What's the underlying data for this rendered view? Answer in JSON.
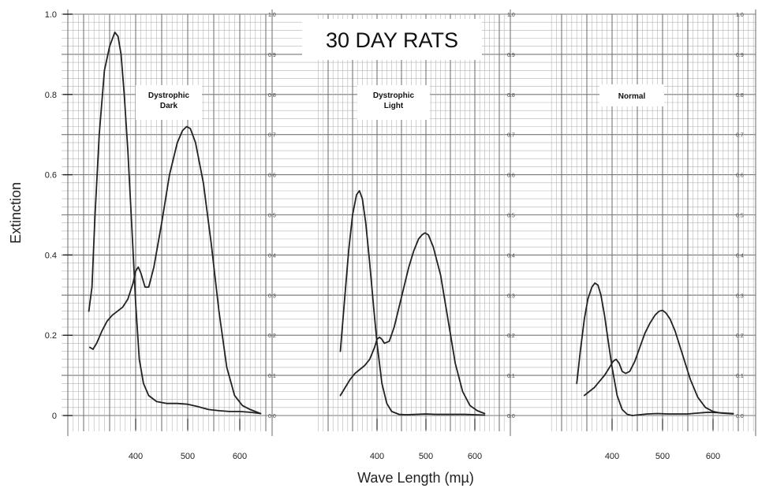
{
  "chart_data": {
    "type": "line",
    "title": "30 DAY RATS",
    "ylabel": "Extinction",
    "xlabel": "Wave Length (mµ)",
    "ylim": [
      0,
      1.0
    ],
    "xlim": [
      310,
      655
    ],
    "y_ticks": [
      "0",
      "0.2",
      "0.4",
      "0.6",
      "0.8",
      "1.0"
    ],
    "y_ticks_small": [
      "0.0",
      "0.1",
      "0.2",
      "0.3",
      "0.4",
      "0.5",
      "0.6",
      "0.7",
      "0.8",
      "0.9",
      "1.0"
    ],
    "x_ticks": [
      "400",
      "500",
      "600"
    ],
    "panels": [
      {
        "label": [
          "Dystrophic",
          "Dark"
        ],
        "series": [
          {
            "x": [
              310,
              316,
              322,
              330,
              340,
              350,
              360,
              366,
              372,
              378,
              385,
              393,
              400,
              407,
              415,
              425,
              440,
              460,
              480,
              500,
              520,
              540,
              560,
              580,
              600,
              620,
              640
            ],
            "y": [
              0.26,
              0.32,
              0.5,
              0.7,
              0.86,
              0.92,
              0.955,
              0.945,
              0.9,
              0.8,
              0.66,
              0.46,
              0.28,
              0.14,
              0.08,
              0.05,
              0.035,
              0.03,
              0.03,
              0.028,
              0.022,
              0.015,
              0.012,
              0.01,
              0.01,
              0.008,
              0.005
            ]
          },
          {
            "x": [
              312,
              318,
              325,
              335,
              345,
              355,
              365,
              375,
              385,
              395,
              400,
              405,
              410,
              418,
              425,
              435,
              450,
              465,
              480,
              490,
              498,
              505,
              515,
              530,
              545,
              560,
              575,
              590,
              605,
              620,
              640
            ],
            "y": [
              0.17,
              0.165,
              0.18,
              0.21,
              0.235,
              0.25,
              0.26,
              0.27,
              0.29,
              0.33,
              0.36,
              0.37,
              0.355,
              0.32,
              0.32,
              0.37,
              0.48,
              0.6,
              0.68,
              0.71,
              0.72,
              0.715,
              0.68,
              0.58,
              0.43,
              0.26,
              0.12,
              0.05,
              0.025,
              0.015,
              0.005
            ]
          }
        ]
      },
      {
        "label": [
          "Dystrophic",
          "Light"
        ],
        "series": [
          {
            "x": [
              325,
              333,
              342,
              350,
              358,
              364,
              370,
              377,
              385,
              393,
              400,
              410,
              420,
              430,
              445,
              460,
              480,
              500,
              520,
              540,
              560,
              580,
              600,
              620
            ],
            "y": [
              0.16,
              0.28,
              0.41,
              0.5,
              0.55,
              0.56,
              0.54,
              0.48,
              0.38,
              0.27,
              0.18,
              0.08,
              0.03,
              0.01,
              0.003,
              0.002,
              0.003,
              0.004,
              0.003,
              0.003,
              0.003,
              0.003,
              0.002,
              0.001
            ]
          },
          {
            "x": [
              325,
              335,
              345,
              355,
              365,
              375,
              385,
              395,
              400,
              405,
              410,
              415,
              425,
              435,
              445,
              455,
              465,
              475,
              485,
              492,
              498,
              505,
              515,
              530,
              545,
              560,
              575,
              590,
              605,
              620
            ],
            "y": [
              0.05,
              0.07,
              0.09,
              0.105,
              0.115,
              0.125,
              0.14,
              0.17,
              0.19,
              0.195,
              0.19,
              0.18,
              0.185,
              0.22,
              0.27,
              0.32,
              0.37,
              0.41,
              0.44,
              0.45,
              0.455,
              0.45,
              0.42,
              0.35,
              0.24,
              0.13,
              0.06,
              0.025,
              0.012,
              0.005
            ]
          }
        ]
      },
      {
        "label": [
          "Normal"
        ],
        "series": [
          {
            "x": [
              330,
              337,
              345,
              352,
              360,
              366,
              372,
              378,
              385,
              393,
              400,
              410,
              420,
              430,
              440,
              455,
              470,
              490,
              510,
              530,
              550,
              570,
              590,
              610,
              640
            ],
            "y": [
              0.08,
              0.16,
              0.24,
              0.29,
              0.32,
              0.33,
              0.325,
              0.3,
              0.25,
              0.18,
              0.12,
              0.05,
              0.015,
              0.003,
              0.0,
              0.002,
              0.004,
              0.005,
              0.004,
              0.004,
              0.004,
              0.006,
              0.008,
              0.007,
              0.005
            ]
          },
          {
            "x": [
              345,
              355,
              365,
              375,
              385,
              395,
              402,
              408,
              414,
              420,
              427,
              435,
              445,
              455,
              465,
              475,
              485,
              493,
              500,
              507,
              515,
              525,
              540,
              555,
              570,
              585,
              600,
              615,
              640
            ],
            "y": [
              0.05,
              0.06,
              0.07,
              0.085,
              0.1,
              0.12,
              0.135,
              0.14,
              0.13,
              0.11,
              0.105,
              0.11,
              0.135,
              0.17,
              0.205,
              0.23,
              0.25,
              0.26,
              0.262,
              0.255,
              0.24,
              0.21,
              0.15,
              0.09,
              0.045,
              0.02,
              0.01,
              0.006,
              0.004
            ]
          }
        ]
      }
    ],
    "grid": true
  }
}
